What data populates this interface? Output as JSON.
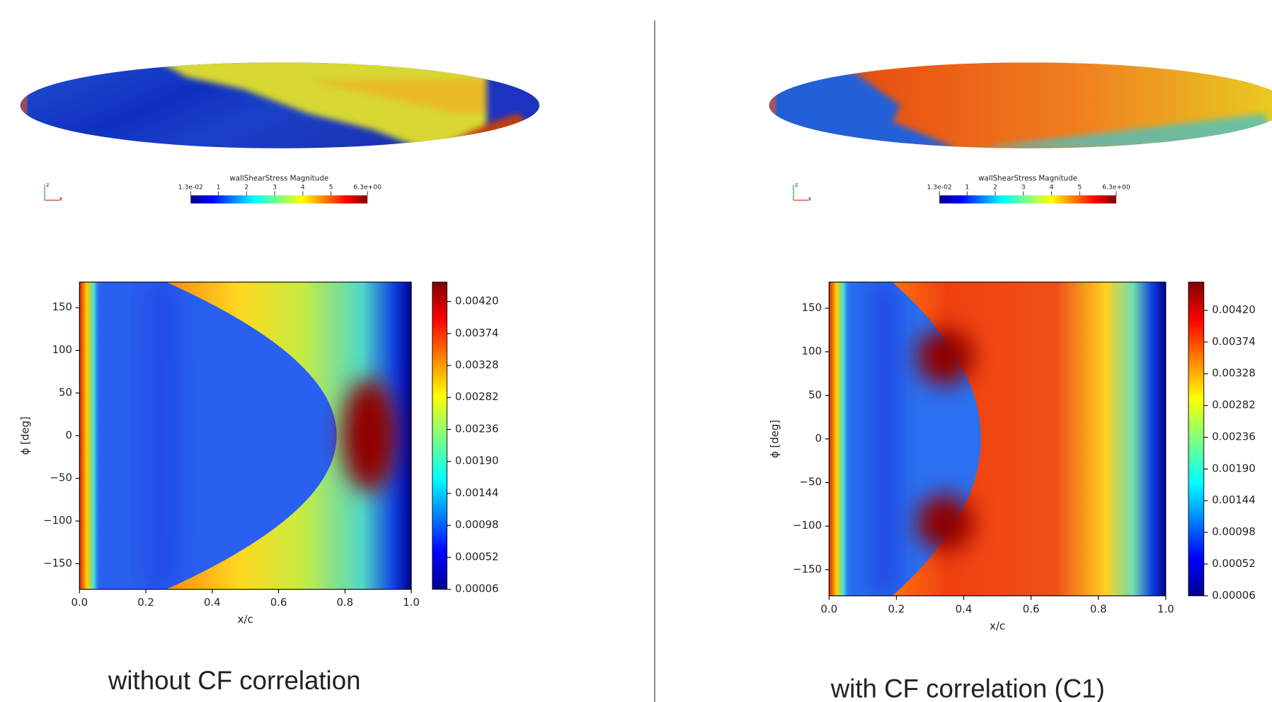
{
  "captions": [
    "without CF correlation",
    "with CF correlation (C1)"
  ],
  "renders": [
    {
      "legend_title": "wallShearStress Magnitude",
      "legend_lim": [
        0.013,
        6.3
      ],
      "legend_ticks": [
        {
          "value": 0.013,
          "label": "1.3e-02"
        },
        1,
        2,
        3,
        4,
        5,
        {
          "value": 6.3,
          "label": "6.3e+00"
        }
      ],
      "triad_labels": [
        "z",
        "x"
      ]
    },
    {
      "legend_title": "wallShearStress Magnitude",
      "legend_lim": [
        0.013,
        6.3
      ],
      "legend_ticks": [
        {
          "value": 0.013,
          "label": "1.3e-02"
        },
        1,
        2,
        3,
        4,
        5,
        {
          "value": 6.3,
          "label": "6.3e+00"
        }
      ],
      "triad_labels": [
        "z",
        "x"
      ]
    }
  ],
  "chart_data": [
    {
      "type": "heatmap",
      "xlabel": "x/c",
      "ylabel": "ϕ [deg]",
      "xlim": [
        0,
        1
      ],
      "xticks": [
        {
          "value": 0,
          "label": "0.0"
        },
        {
          "value": 0.2,
          "label": "0.2"
        },
        {
          "value": 0.4,
          "label": "0.4"
        },
        {
          "value": 0.6,
          "label": "0.6"
        },
        {
          "value": 0.8,
          "label": "0.8"
        },
        {
          "value": 1,
          "label": "1.0"
        }
      ],
      "ylim": [
        -180,
        180
      ],
      "yticks": [
        {
          "value": -150,
          "label": "−150"
        },
        {
          "value": -100,
          "label": "−100"
        },
        {
          "value": -50,
          "label": "−50"
        },
        0,
        50,
        100,
        150
      ],
      "colorbar": {
        "lim": [
          6e-05,
          0.00448
        ],
        "ticks": [
          {
            "value": 6e-05,
            "label": "0.00006"
          },
          {
            "value": 0.00052,
            "label": "0.00052"
          },
          {
            "value": 0.00098,
            "label": "0.00098"
          },
          {
            "value": 0.00144,
            "label": "0.00144"
          },
          {
            "value": 0.0019,
            "label": "0.00190"
          },
          {
            "value": 0.00236,
            "label": "0.00236"
          },
          {
            "value": 0.00282,
            "label": "0.00282"
          },
          {
            "value": 0.00328,
            "label": "0.00328"
          },
          {
            "value": 0.00374,
            "label": "0.00374"
          },
          {
            "value": 0.0042,
            "label": "0.00420"
          }
        ]
      }
    },
    {
      "type": "heatmap",
      "xlabel": "x/c",
      "ylabel": "ϕ [deg]",
      "xlim": [
        0,
        1
      ],
      "xticks": [
        {
          "value": 0,
          "label": "0.0"
        },
        {
          "value": 0.2,
          "label": "0.2"
        },
        {
          "value": 0.4,
          "label": "0.4"
        },
        {
          "value": 0.6,
          "label": "0.6"
        },
        {
          "value": 0.8,
          "label": "0.8"
        },
        {
          "value": 1,
          "label": "1.0"
        }
      ],
      "ylim": [
        -180,
        180
      ],
      "yticks": [
        {
          "value": -150,
          "label": "−150"
        },
        {
          "value": -100,
          "label": "−100"
        },
        {
          "value": -50,
          "label": "−50"
        },
        0,
        50,
        100,
        150
      ],
      "colorbar": {
        "lim": [
          6e-05,
          0.00461
        ],
        "ticks": [
          {
            "value": 6e-05,
            "label": "0.00006"
          },
          {
            "value": 0.00052,
            "label": "0.00052"
          },
          {
            "value": 0.00098,
            "label": "0.00098"
          },
          {
            "value": 0.00144,
            "label": "0.00144"
          },
          {
            "value": 0.0019,
            "label": "0.00190"
          },
          {
            "value": 0.00236,
            "label": "0.00236"
          },
          {
            "value": 0.00282,
            "label": "0.00282"
          },
          {
            "value": 0.00328,
            "label": "0.00328"
          },
          {
            "value": 0.00374,
            "label": "0.00374"
          },
          {
            "value": 0.0042,
            "label": "0.00420"
          }
        ]
      }
    }
  ]
}
